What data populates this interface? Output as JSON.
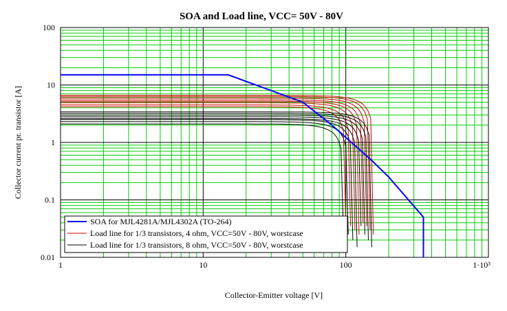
{
  "chart_data": {
    "type": "line",
    "title": "SOA and Load line, VCC= 50V - 80V",
    "xlabel": "Collector-Emitter voltage [V]",
    "ylabel": "Collector current pr. transistor [A]",
    "xscale": "log",
    "yscale": "log",
    "xlim": [
      1,
      1000
    ],
    "ylim": [
      0.01,
      100
    ],
    "x_tick_labels": [
      "1",
      "10",
      "100",
      "1·10³"
    ],
    "y_tick_labels": [
      "100",
      "10",
      "1",
      "0.1",
      "0.01"
    ],
    "grid": true,
    "legend_position": "bottom-left",
    "colors": {
      "grid_minor": "#00cc00",
      "grid_major": "#000000",
      "soa": "#0000ff",
      "load_4ohm": "#cc0000",
      "load_8ohm": "#000000"
    },
    "series": [
      {
        "name": "SOA for MJL4281A/MJL4302A (TO-264)",
        "color": "#0000ff",
        "x": [
          1,
          15,
          50,
          80,
          150,
          200,
          350,
          350
        ],
        "y": [
          15,
          15,
          5,
          2,
          0.5,
          0.25,
          0.05,
          0.01
        ]
      },
      {
        "name": "Load line for 1/3 transistors, 4 ohm, VCC=50V - 80V, worstcase",
        "color": "#cc0000",
        "vcc": [
          100,
          108,
          116,
          124,
          132,
          140,
          148,
          156
        ],
        "i_start": [
          4.2,
          4.5,
          4.9,
          5.2,
          5.5,
          5.9,
          6.3,
          6.6
        ],
        "i_end": [
          0.04,
          0.035,
          0.03,
          0.025,
          0.04,
          0.035,
          0.03,
          0.025
        ]
      },
      {
        "name": "Load line for 1/3 transistors, 8 ohm, VCC=50V - 80V, worstcase",
        "color": "#000000",
        "vcc": [
          96,
          104,
          112,
          120,
          128,
          136,
          144,
          152
        ],
        "i_start": [
          2.1,
          2.3,
          2.5,
          2.6,
          2.8,
          3.0,
          3.2,
          3.4
        ],
        "i_end": [
          0.035,
          0.025,
          0.02,
          0.015,
          0.035,
          0.025,
          0.02,
          0.015
        ]
      }
    ]
  }
}
